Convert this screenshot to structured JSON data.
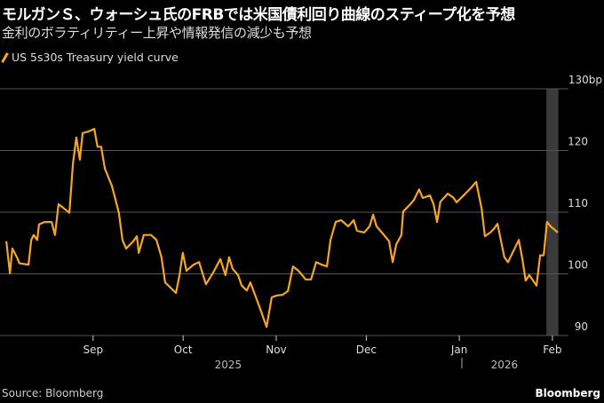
{
  "title": "モルガンＳ、ウォーシュ氏のFRBでは米国債利回り曲線のスティープ化を予想",
  "subtitle": "金利のボラティリティー上昇や情報発信の減少も予想",
  "footer": {
    "source": "Source: Bloomberg",
    "brand": "Bloomberg"
  },
  "colors": {
    "line": "#f5a623",
    "grid": "#555555",
    "shade": "#3a3a3a"
  },
  "chart_data": {
    "type": "line",
    "legend": [
      "US 5s30s Treasury yield curve"
    ],
    "legend_position": "top-left",
    "ylabel": "bp",
    "ylim": [
      90,
      130
    ],
    "yticks": [
      {
        "v": 130,
        "label": "130bp"
      },
      {
        "v": 120,
        "label": "120"
      },
      {
        "v": 110,
        "label": "110"
      },
      {
        "v": 100,
        "label": "100"
      },
      {
        "v": 90,
        "label": "90"
      }
    ],
    "x_unit": "days since Aug 1, 2025",
    "xticks": [
      {
        "d": 31,
        "label": "Sep"
      },
      {
        "d": 61,
        "label": "Oct"
      },
      {
        "d": 92,
        "label": "Nov"
      },
      {
        "d": 122,
        "label": "Dec"
      },
      {
        "d": 153,
        "label": "Jan"
      },
      {
        "d": 184,
        "label": "Feb"
      }
    ],
    "year_labels": [
      {
        "d": 76,
        "label": "2025"
      },
      {
        "d": 168,
        "label": "2026"
      }
    ],
    "shaded_range": [
      182,
      186
    ],
    "series": [
      {
        "name": "US 5s30s Treasury yield curve",
        "points": [
          [
            2.1,
            105.3
          ],
          [
            3.3,
            100.1
          ],
          [
            4.1,
            104.1
          ],
          [
            5.3,
            103.0
          ],
          [
            6.5,
            101.7
          ],
          [
            9.5,
            101.5
          ],
          [
            10.4,
            105.5
          ],
          [
            11.2,
            106.3
          ],
          [
            12.4,
            105.5
          ],
          [
            13.0,
            108.0
          ],
          [
            14.8,
            108.4
          ],
          [
            17.2,
            108.4
          ],
          [
            18.3,
            106.3
          ],
          [
            19.5,
            111.3
          ],
          [
            21.3,
            110.6
          ],
          [
            23.1,
            109.9
          ],
          [
            24.3,
            117.8
          ],
          [
            25.4,
            122.1
          ],
          [
            26.6,
            118.5
          ],
          [
            27.5,
            122.8
          ],
          [
            29.6,
            123.1
          ],
          [
            31.4,
            123.5
          ],
          [
            32.5,
            120.6
          ],
          [
            33.7,
            120.6
          ],
          [
            34.9,
            117.1
          ],
          [
            37.3,
            114.2
          ],
          [
            39.6,
            109.9
          ],
          [
            40.8,
            105.5
          ],
          [
            42.0,
            104.1
          ],
          [
            44.4,
            105.3
          ],
          [
            45.6,
            106.1
          ],
          [
            46.2,
            103.4
          ],
          [
            47.9,
            106.3
          ],
          [
            50.3,
            106.3
          ],
          [
            52.1,
            105.5
          ],
          [
            53.8,
            102.7
          ],
          [
            55.0,
            98.6
          ],
          [
            58.6,
            96.9
          ],
          [
            59.8,
            99.8
          ],
          [
            60.9,
            103.4
          ],
          [
            62.1,
            100.5
          ],
          [
            64.5,
            101.5
          ],
          [
            66.3,
            101.9
          ],
          [
            68.6,
            98.3
          ],
          [
            71.0,
            100.2
          ],
          [
            73.4,
            102.4
          ],
          [
            75.1,
            99.8
          ],
          [
            76.3,
            102.7
          ],
          [
            77.5,
            100.8
          ],
          [
            79.3,
            99.8
          ],
          [
            80.5,
            98.1
          ],
          [
            82.2,
            97.3
          ],
          [
            83.4,
            98.6
          ],
          [
            86.4,
            94.7
          ],
          [
            88.8,
            91.4
          ],
          [
            90.5,
            96.2
          ],
          [
            92.3,
            96.5
          ],
          [
            94.1,
            96.6
          ],
          [
            95.9,
            97.2
          ],
          [
            97.6,
            101.2
          ],
          [
            99.4,
            100.5
          ],
          [
            101.8,
            99.1
          ],
          [
            103.6,
            99.1
          ],
          [
            105.3,
            101.9
          ],
          [
            107.1,
            101.5
          ],
          [
            108.9,
            101.2
          ],
          [
            110.1,
            105.5
          ],
          [
            111.8,
            108.4
          ],
          [
            113.6,
            108.7
          ],
          [
            116.0,
            107.7
          ],
          [
            117.8,
            108.7
          ],
          [
            118.9,
            107.0
          ],
          [
            121.3,
            106.7
          ],
          [
            123.1,
            107.7
          ],
          [
            124.3,
            109.6
          ],
          [
            125.4,
            107.7
          ],
          [
            127.2,
            106.7
          ],
          [
            129.6,
            105.3
          ],
          [
            130.8,
            101.9
          ],
          [
            132.0,
            104.8
          ],
          [
            133.7,
            106.3
          ],
          [
            134.3,
            110.1
          ],
          [
            136.7,
            111.3
          ],
          [
            137.9,
            112.0
          ],
          [
            139.6,
            113.7
          ],
          [
            140.8,
            112.3
          ],
          [
            143.2,
            112.7
          ],
          [
            144.4,
            111.3
          ],
          [
            145.6,
            108.4
          ],
          [
            146.7,
            111.7
          ],
          [
            149.1,
            113.0
          ],
          [
            150.9,
            112.4
          ],
          [
            152.1,
            111.6
          ],
          [
            154.4,
            112.7
          ],
          [
            156.8,
            113.9
          ],
          [
            158.6,
            114.9
          ],
          [
            160.4,
            110.6
          ],
          [
            161.5,
            106.1
          ],
          [
            163.3,
            106.7
          ],
          [
            164.5,
            107.3
          ],
          [
            165.7,
            108.1
          ],
          [
            168.0,
            102.7
          ],
          [
            169.2,
            101.9
          ],
          [
            171.0,
            103.7
          ],
          [
            172.8,
            105.5
          ],
          [
            174.0,
            102.4
          ],
          [
            175.1,
            98.9
          ],
          [
            176.3,
            99.8
          ],
          [
            178.7,
            98.1
          ],
          [
            179.9,
            103.0
          ],
          [
            181.1,
            103.0
          ],
          [
            182.2,
            108.4
          ],
          [
            183.4,
            107.7
          ],
          [
            185.8,
            106.7
          ]
        ]
      }
    ]
  }
}
